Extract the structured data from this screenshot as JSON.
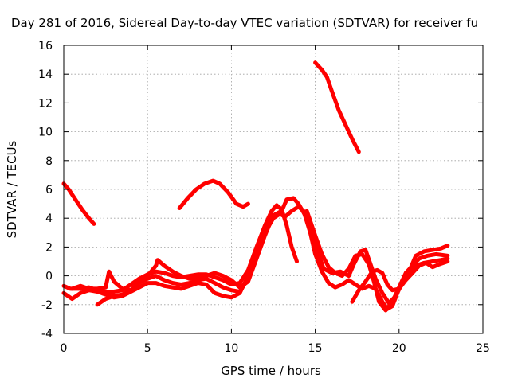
{
  "chart_data": {
    "type": "line",
    "title": "Day 281 of 2016, Sidereal Day-to-day VTEC variation (SDTVAR) for receiver fu",
    "xlabel": "GPS time / hours",
    "ylabel": "SDTVAR / TECUs",
    "xlim": [
      0,
      25
    ],
    "ylim": [
      -4,
      16
    ],
    "xticks": [
      "0",
      "5",
      "10",
      "15",
      "20",
      "25"
    ],
    "yticks": [
      "-4",
      "-2",
      "0",
      "2",
      "4",
      "6",
      "8",
      "10",
      "12",
      "14",
      "16"
    ],
    "grid": true,
    "color": "#ff0000",
    "series": [
      {
        "points": [
          [
            0.0,
            6.4
          ],
          [
            0.3,
            6.0
          ],
          [
            0.7,
            5.3
          ],
          [
            1.1,
            4.6
          ],
          [
            1.5,
            4.0
          ],
          [
            1.8,
            3.6
          ]
        ]
      },
      {
        "points": [
          [
            6.9,
            4.7
          ],
          [
            7.4,
            5.4
          ],
          [
            7.9,
            6.0
          ],
          [
            8.4,
            6.4
          ],
          [
            8.9,
            6.6
          ],
          [
            9.3,
            6.4
          ],
          [
            9.8,
            5.8
          ],
          [
            10.3,
            5.0
          ],
          [
            10.7,
            4.8
          ],
          [
            11.0,
            5.0
          ]
        ]
      },
      {
        "points": [
          [
            15.0,
            14.8
          ],
          [
            15.4,
            14.3
          ],
          [
            15.7,
            13.8
          ],
          [
            16.0,
            12.8
          ],
          [
            16.4,
            11.5
          ],
          [
            16.8,
            10.5
          ],
          [
            17.2,
            9.5
          ],
          [
            17.6,
            8.6
          ]
        ]
      },
      {
        "points": [
          [
            0.0,
            -0.7
          ],
          [
            0.4,
            -0.9
          ],
          [
            1.0,
            -0.9
          ],
          [
            1.5,
            -0.8
          ],
          [
            2.0,
            -1.0
          ],
          [
            2.5,
            -1.1
          ],
          [
            3.0,
            -1.1
          ],
          [
            3.5,
            -1.0
          ],
          [
            4.0,
            -0.6
          ],
          [
            4.5,
            -0.2
          ],
          [
            5.0,
            0.1
          ],
          [
            5.5,
            0.3
          ],
          [
            6.0,
            0.2
          ],
          [
            6.5,
            0.0
          ],
          [
            7.0,
            -0.1
          ],
          [
            7.5,
            0.0
          ],
          [
            8.0,
            0.1
          ],
          [
            8.5,
            0.1
          ],
          [
            9.0,
            -0.1
          ],
          [
            9.5,
            -0.3
          ],
          [
            10.0,
            -0.6
          ],
          [
            10.5,
            -0.5
          ],
          [
            11.0,
            0.4
          ],
          [
            11.5,
            2.0
          ],
          [
            12.0,
            3.5
          ],
          [
            12.4,
            4.5
          ],
          [
            12.7,
            4.9
          ],
          [
            13.0,
            4.6
          ],
          [
            13.3,
            3.5
          ],
          [
            13.6,
            2.0
          ],
          [
            13.9,
            1.0
          ]
        ]
      },
      {
        "points": [
          [
            0.0,
            -1.2
          ],
          [
            0.5,
            -1.6
          ],
          [
            1.0,
            -1.2
          ],
          [
            1.5,
            -1.0
          ],
          [
            2.0,
            -1.1
          ],
          [
            2.5,
            -1.3
          ],
          [
            3.0,
            -1.5
          ],
          [
            3.5,
            -1.4
          ],
          [
            4.0,
            -1.1
          ],
          [
            4.5,
            -0.8
          ],
          [
            5.0,
            -0.5
          ],
          [
            5.5,
            -0.5
          ],
          [
            6.0,
            -0.7
          ],
          [
            6.5,
            -0.8
          ],
          [
            7.0,
            -0.9
          ],
          [
            7.5,
            -0.7
          ],
          [
            8.0,
            -0.5
          ],
          [
            8.5,
            -0.6
          ],
          [
            9.0,
            -1.2
          ],
          [
            9.5,
            -1.4
          ],
          [
            10.0,
            -1.5
          ],
          [
            10.5,
            -1.2
          ],
          [
            11.0,
            0.0
          ],
          [
            11.5,
            1.6
          ],
          [
            12.0,
            3.0
          ],
          [
            12.5,
            4.0
          ],
          [
            12.9,
            4.3
          ],
          [
            13.2,
            4.1
          ],
          [
            13.6,
            4.5
          ],
          [
            14.0,
            4.8
          ],
          [
            14.3,
            4.5
          ],
          [
            14.7,
            3.0
          ],
          [
            15.0,
            1.5
          ],
          [
            15.4,
            0.3
          ],
          [
            15.8,
            -0.5
          ],
          [
            16.2,
            -0.8
          ],
          [
            16.6,
            -0.6
          ],
          [
            17.0,
            -0.3
          ],
          [
            17.4,
            -0.6
          ],
          [
            17.8,
            -0.9
          ],
          [
            18.2,
            -0.7
          ],
          [
            18.6,
            -0.9
          ],
          [
            19.0,
            -1.8
          ],
          [
            19.3,
            -2.3
          ],
          [
            19.6,
            -2.1
          ],
          [
            19.9,
            -1.2
          ],
          [
            20.2,
            -0.3
          ],
          [
            20.6,
            0.3
          ],
          [
            21.0,
            0.7
          ],
          [
            21.5,
            0.9
          ],
          [
            22.0,
            1.0
          ],
          [
            22.5,
            1.1
          ],
          [
            22.9,
            1.2
          ]
        ]
      },
      {
        "points": [
          [
            0.5,
            -0.9
          ],
          [
            1.0,
            -0.7
          ],
          [
            1.5,
            -0.9
          ],
          [
            2.0,
            -0.9
          ],
          [
            2.5,
            -0.8
          ],
          [
            2.7,
            0.3
          ],
          [
            3.0,
            -0.4
          ],
          [
            3.5,
            -0.9
          ],
          [
            4.0,
            -1.0
          ],
          [
            4.5,
            -0.4
          ],
          [
            5.0,
            0.0
          ],
          [
            5.5,
            0.7
          ],
          [
            5.6,
            1.1
          ],
          [
            6.0,
            0.7
          ],
          [
            6.5,
            0.3
          ],
          [
            7.0,
            0.0
          ],
          [
            7.5,
            -0.2
          ],
          [
            8.0,
            -0.1
          ],
          [
            8.5,
            0.0
          ],
          [
            9.0,
            0.2
          ],
          [
            9.5,
            0.0
          ],
          [
            10.0,
            -0.3
          ],
          [
            10.5,
            -0.8
          ],
          [
            11.0,
            -0.4
          ],
          [
            11.5,
            1.2
          ],
          [
            12.0,
            2.8
          ],
          [
            12.5,
            4.2
          ],
          [
            13.0,
            4.5
          ],
          [
            13.3,
            5.3
          ],
          [
            13.7,
            5.4
          ],
          [
            14.0,
            5.0
          ],
          [
            14.5,
            4.0
          ],
          [
            15.0,
            2.2
          ],
          [
            15.5,
            0.5
          ],
          [
            16.0,
            0.2
          ],
          [
            16.5,
            0.3
          ],
          [
            17.0,
            0.0
          ],
          [
            17.3,
            0.8
          ],
          [
            17.7,
            1.7
          ],
          [
            18.0,
            1.8
          ],
          [
            18.3,
            0.8
          ],
          [
            18.6,
            -0.2
          ],
          [
            19.0,
            -1.2
          ],
          [
            19.4,
            -1.9
          ],
          [
            19.8,
            -1.4
          ],
          [
            20.2,
            -0.5
          ],
          [
            20.6,
            0.3
          ],
          [
            21.0,
            1.4
          ],
          [
            21.5,
            1.7
          ],
          [
            22.0,
            1.8
          ],
          [
            22.5,
            1.9
          ],
          [
            22.9,
            2.1
          ]
        ]
      },
      {
        "points": [
          [
            2.0,
            -2.0
          ],
          [
            2.5,
            -1.6
          ],
          [
            3.0,
            -1.4
          ],
          [
            3.5,
            -1.3
          ],
          [
            4.0,
            -1.0
          ],
          [
            4.5,
            -0.5
          ],
          [
            5.0,
            -0.2
          ],
          [
            5.5,
            0.0
          ],
          [
            6.0,
            -0.3
          ],
          [
            6.5,
            -0.5
          ],
          [
            7.0,
            -0.6
          ],
          [
            7.5,
            -0.5
          ],
          [
            8.0,
            -0.3
          ],
          [
            8.5,
            -0.2
          ],
          [
            9.0,
            -0.5
          ],
          [
            9.5,
            -0.8
          ],
          [
            10.0,
            -1.0
          ],
          [
            10.5,
            -1.1
          ],
          [
            11.0,
            -0.2
          ]
        ]
      },
      {
        "points": [
          [
            14.5,
            4.5
          ],
          [
            15.0,
            2.8
          ],
          [
            15.4,
            1.5
          ],
          [
            15.8,
            0.6
          ],
          [
            16.2,
            0.2
          ],
          [
            16.6,
            0.0
          ],
          [
            17.0,
            0.5
          ],
          [
            17.4,
            1.4
          ],
          [
            17.8,
            1.5
          ],
          [
            18.2,
            0.8
          ],
          [
            18.5,
            -0.4
          ],
          [
            18.8,
            -1.8
          ],
          [
            19.2,
            -2.4
          ],
          [
            19.6,
            -1.8
          ],
          [
            20.0,
            -0.8
          ],
          [
            20.4,
            0.2
          ],
          [
            20.8,
            0.7
          ],
          [
            21.2,
            1.2
          ],
          [
            21.7,
            1.4
          ],
          [
            22.2,
            1.5
          ],
          [
            22.9,
            1.4
          ]
        ]
      },
      {
        "points": [
          [
            17.2,
            -1.8
          ],
          [
            17.6,
            -1.0
          ],
          [
            18.0,
            -0.4
          ],
          [
            18.4,
            0.3
          ],
          [
            18.7,
            0.4
          ],
          [
            19.0,
            0.2
          ],
          [
            19.3,
            -0.6
          ],
          [
            19.6,
            -1.0
          ],
          [
            20.0,
            -0.9
          ],
          [
            20.4,
            -0.3
          ],
          [
            20.8,
            0.2
          ],
          [
            21.2,
            0.7
          ],
          [
            21.6,
            0.9
          ],
          [
            22.0,
            0.6
          ],
          [
            22.4,
            0.8
          ],
          [
            22.9,
            1.0
          ]
        ]
      }
    ]
  }
}
